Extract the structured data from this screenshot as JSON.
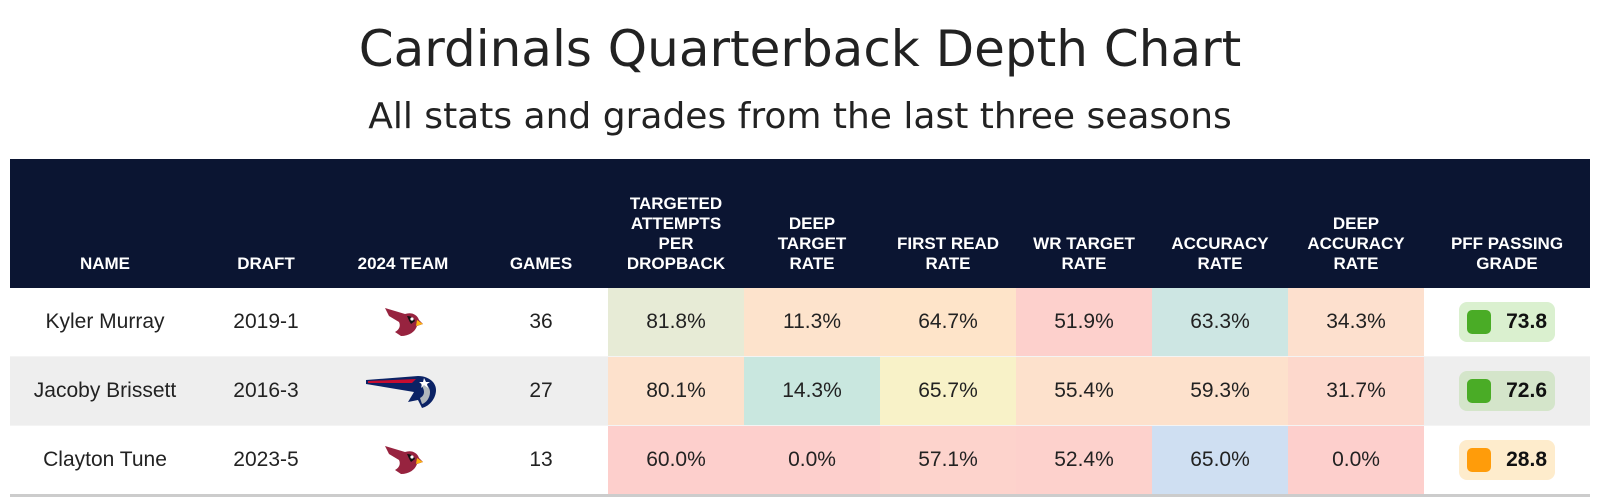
{
  "title": "Cardinals Quarterback Depth Chart",
  "subtitle": "All stats and grades from the last three seasons",
  "colors": {
    "header_bg": "#0b1532",
    "grade_green": "#4aac26",
    "grade_orange": "#ff9c0a"
  },
  "chart_data": {
    "type": "table",
    "columns": [
      "NAME",
      "DRAFT",
      "2024 TEAM",
      "GAMES",
      "TARGETED ATTEMPTS PER DROPBACK",
      "DEEP TARGET RATE",
      "FIRST READ RATE",
      "WR TARGET RATE",
      "ACCURACY RATE",
      "DEEP ACCURACY RATE",
      "PFF PASSING GRADE"
    ],
    "rows": [
      {
        "name": "Kyler Murray",
        "draft": "2019-1",
        "team_logo": "cardinals-logo-icon",
        "games": "36",
        "stats": [
          {
            "value": "81.8%",
            "color": "#e7ebd6"
          },
          {
            "value": "11.3%",
            "color": "#fde3cc"
          },
          {
            "value": "64.7%",
            "color": "#fee4c9"
          },
          {
            "value": "51.9%",
            "color": "#fdd0cc"
          },
          {
            "value": "63.3%",
            "color": "#cde6e3"
          },
          {
            "value": "34.3%",
            "color": "#fde0ce"
          }
        ],
        "grade": "73.8",
        "grade_color": "#4aac26",
        "grade_bg": "#daf0cf"
      },
      {
        "name": "Jacoby Brissett",
        "draft": "2016-3",
        "team_logo": "patriots-logo-icon",
        "games": "27",
        "stats": [
          {
            "value": "80.1%",
            "color": "#fde1cc"
          },
          {
            "value": "14.3%",
            "color": "#c9e7df"
          },
          {
            "value": "65.7%",
            "color": "#f8f2c8"
          },
          {
            "value": "55.4%",
            "color": "#fde1cc"
          },
          {
            "value": "59.3%",
            "color": "#fde1cc"
          },
          {
            "value": "31.7%",
            "color": "#fdd8cc"
          }
        ],
        "grade": "72.6",
        "grade_color": "#4aac26",
        "grade_bg": "#d4e5ca"
      },
      {
        "name": "Clayton Tune",
        "draft": "2023-5",
        "team_logo": "cardinals-logo-icon",
        "games": "13",
        "stats": [
          {
            "value": "60.0%",
            "color": "#fdcfcc"
          },
          {
            "value": "0.0%",
            "color": "#fdcfcc"
          },
          {
            "value": "57.1%",
            "color": "#fdd3cc"
          },
          {
            "value": "52.4%",
            "color": "#fdd1cc"
          },
          {
            "value": "65.0%",
            "color": "#cfdff2"
          },
          {
            "value": "0.0%",
            "color": "#fdcfcc"
          }
        ],
        "grade": "28.8",
        "grade_color": "#ff9c0a",
        "grade_bg": "#feeccc"
      }
    ]
  }
}
